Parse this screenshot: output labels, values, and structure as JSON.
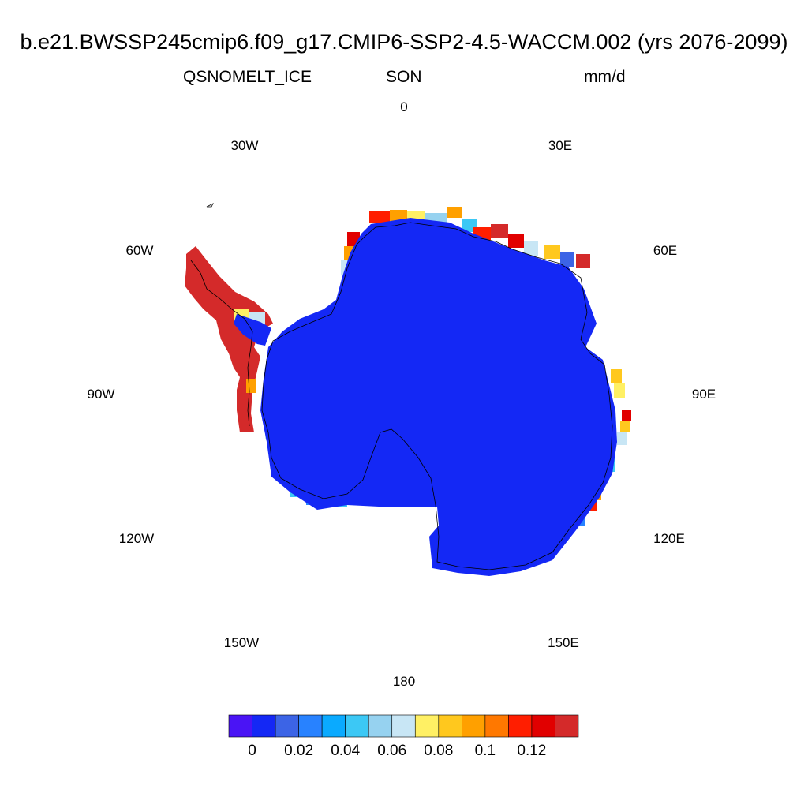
{
  "title": "b.e21.BWSSP245cmip6.f09_g17.CMIP6-SSP2-4.5-WACCM.002 (yrs 2076-2099)",
  "variable": "QSNOMELT_ICE",
  "season": "SON",
  "units": "mm/d",
  "longitude_labels": {
    "lon_0": "0",
    "lon_30e": "30E",
    "lon_60e": "60E",
    "lon_90e": "90E",
    "lon_120e": "120E",
    "lon_150e": "150E",
    "lon_180": "180",
    "lon_150w": "150W",
    "lon_120w": "120W",
    "lon_90w": "90W",
    "lon_60w": "60W",
    "lon_30w": "30W"
  },
  "colors": {
    "interior": "#1428f5",
    "peninsula": "#d42a2a",
    "coastline": "#000000"
  },
  "colorbar": {
    "colors": [
      "#4a14f5",
      "#1428f5",
      "#3c64e6",
      "#2882ff",
      "#0aaaff",
      "#3cc8f5",
      "#96d2f0",
      "#c8e6f5",
      "#fff064",
      "#ffc81e",
      "#ffa000",
      "#ff7800",
      "#ff1e00",
      "#e10000",
      "#d42a2a"
    ],
    "labels": [
      "0",
      "0.02",
      "0.04",
      "0.06",
      "0.08",
      "0.1",
      "0.12"
    ]
  }
}
